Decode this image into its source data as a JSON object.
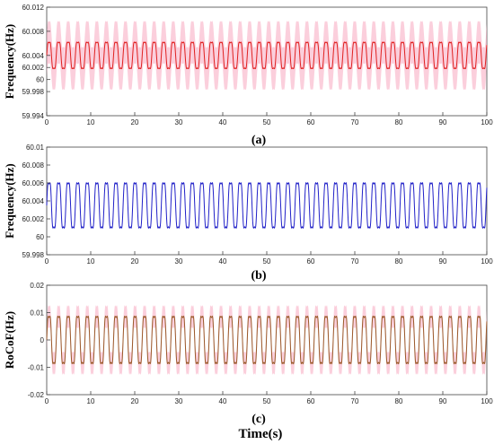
{
  "chart_data": [
    {
      "type": "line",
      "panel_label": "(a)",
      "ylabel": "Frequency(Hz)",
      "xlim": [
        0,
        100
      ],
      "ylim": [
        59.994,
        60.012
      ],
      "x_ticks": [
        "0",
        "10",
        "20",
        "30",
        "40",
        "50",
        "60",
        "70",
        "80",
        "90",
        "100"
      ],
      "y_ticks": [
        "59.994",
        "59.998",
        "60",
        "60.002",
        "60.004",
        "60.008",
        "60.012"
      ],
      "series": [
        {
          "color": "#e02020",
          "band_color": "#f7a8c0",
          "center": 60.004,
          "amplitude": 0.0028,
          "band": 0.0035,
          "period": 2.17,
          "x_start": 0,
          "x_end": 100
        }
      ]
    },
    {
      "type": "line",
      "panel_label": "(b)",
      "ylabel": "Frequency(Hz)",
      "xlim": [
        0,
        100
      ],
      "ylim": [
        59.998,
        60.01
      ],
      "x_ticks": [
        "0",
        "10",
        "20",
        "30",
        "40",
        "50",
        "60",
        "70",
        "80",
        "90",
        "100"
      ],
      "y_ticks": [
        "59.998",
        "60",
        "60.002",
        "60.004",
        "60.006",
        "60.008",
        "60.01"
      ],
      "series": [
        {
          "color": "#2020c8",
          "center": 60.0035,
          "amplitude": 0.0032,
          "period": 2.17,
          "x_start": 0,
          "x_end": 100
        }
      ]
    },
    {
      "type": "line",
      "panel_label": "(c)",
      "ylabel": "RoCoF(Hz)",
      "xlabel": "Time(s)",
      "xlim": [
        0,
        100
      ],
      "ylim": [
        -0.02,
        0.02
      ],
      "x_ticks": [
        "0",
        "10",
        "20",
        "30",
        "40",
        "50",
        "60",
        "70",
        "80",
        "90",
        "100"
      ],
      "y_ticks": [
        "-0.02",
        "-0.01",
        "0",
        "0.01",
        "0.02"
      ],
      "series": [
        {
          "color": "#9a5a2a",
          "band_color": "#f7a8c0",
          "center": 0.0,
          "amplitude": 0.011,
          "band": 0.004,
          "period": 2.17,
          "x_start": 0,
          "x_end": 100
        }
      ]
    }
  ]
}
